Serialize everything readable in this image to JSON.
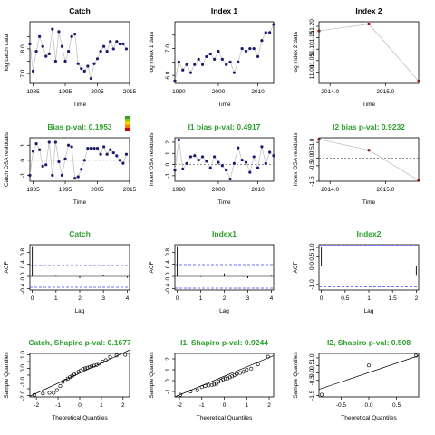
{
  "colors": {
    "title": "#000000",
    "green_title": "#2ca02c",
    "point": "#1a1a6e",
    "point_red": "#8b1a1a",
    "line": "#bbbbbb",
    "ref_line": "#4444ff",
    "legend": [
      "#2ca02c",
      "#7fd000",
      "#ffd000",
      "#ff8000",
      "#cc0000"
    ]
  },
  "chart_data": [
    {
      "type": "line",
      "title": "Catch",
      "xlabel": "Time",
      "ylabel": "log catch data",
      "xlim": [
        1984,
        2015
      ],
      "ylim": [
        6.6,
        9.1
      ],
      "xticks": [
        1985,
        1995,
        2005,
        2015
      ],
      "yticks": [
        7.0,
        7.5,
        8.0,
        8.5
      ],
      "ytick_labels": [
        "7.0",
        "",
        "8.0",
        ""
      ],
      "x": [
        1984,
        1985,
        1986,
        1987,
        1988,
        1989,
        1990,
        1991,
        1992,
        1993,
        1994,
        1995,
        1996,
        1997,
        1998,
        1999,
        2000,
        2001,
        2002,
        2003,
        2004,
        2005,
        2006,
        2007,
        2008,
        2009,
        2010,
        2011,
        2012,
        2013,
        2014
      ],
      "y": [
        8.2,
        7.1,
        7.9,
        8.5,
        8.1,
        7.7,
        7.8,
        8.8,
        7.5,
        8.7,
        8.1,
        7.5,
        7.9,
        8.5,
        8.6,
        7.4,
        7.2,
        7.1,
        7.3,
        6.8,
        7.4,
        7.6,
        7.9,
        8.1,
        7.9,
        8.3,
        8.0,
        8.3,
        8.2,
        8.2,
        8.0
      ]
    },
    {
      "type": "line",
      "title": "Index 1",
      "xlabel": "Time",
      "ylabel": "log index 1 data",
      "xlim": [
        1989,
        2014
      ],
      "ylim": [
        5.7,
        8.0
      ],
      "xticks": [
        1990,
        2000,
        2010
      ],
      "yticks": [
        6.0,
        6.5,
        7.0,
        7.5
      ],
      "ytick_labels": [
        "6.0",
        "",
        "7.0",
        ""
      ],
      "x": [
        1989,
        1990,
        1991,
        1992,
        1993,
        1994,
        1995,
        1996,
        1997,
        1998,
        1999,
        2000,
        2001,
        2002,
        2003,
        2004,
        2005,
        2006,
        2007,
        2008,
        2009,
        2010,
        2011,
        2012,
        2013,
        2014
      ],
      "y": [
        5.8,
        6.5,
        6.2,
        6.4,
        6.1,
        6.4,
        6.6,
        6.4,
        6.7,
        6.8,
        6.6,
        6.9,
        6.6,
        6.4,
        6.5,
        6.1,
        6.5,
        7.0,
        6.9,
        7.0,
        7.0,
        6.7,
        7.3,
        7.6,
        7.6,
        7.9
      ]
    },
    {
      "type": "line",
      "title": "Index 2",
      "xlabel": "Time",
      "ylabel": "log index 2 data",
      "xlim": [
        2013.8,
        2015.6
      ],
      "ylim": [
        10.95,
        11.22
      ],
      "xticks": [
        2014.0,
        2015.0
      ],
      "xtick_labels": [
        "2014.0",
        "2015.0"
      ],
      "yticks": [
        11.0,
        11.05,
        11.1,
        11.15,
        11.2
      ],
      "ytick_labels": [
        "11.00",
        "11.05",
        "11.10",
        "11.15",
        "11.20"
      ],
      "x": [
        2013.8,
        2014.7,
        2015.6
      ],
      "y": [
        11.18,
        11.21,
        10.96
      ],
      "point_color": "point_red"
    },
    {
      "type": "line",
      "title": "Bias p-val: 0.1953",
      "xlabel": "Time",
      "ylabel": "Catch OSA residuals",
      "xlim": [
        1984,
        2015
      ],
      "ylim": [
        -1.4,
        1.5
      ],
      "xticks": [
        1985,
        1995,
        2005,
        2015
      ],
      "yticks": [
        -1,
        0,
        1
      ],
      "ytick_labels": [
        "-1",
        "0",
        "1"
      ],
      "zero_line": true,
      "legend": true,
      "x": [
        1984,
        1985,
        1986,
        1987,
        1988,
        1989,
        1990,
        1991,
        1992,
        1993,
        1994,
        1995,
        1996,
        1997,
        1998,
        1999,
        2000,
        2001,
        2002,
        2003,
        2004,
        2005,
        2006,
        2007,
        2008,
        2009,
        2010,
        2011,
        2012,
        2013,
        2014
      ],
      "y": [
        -1.0,
        0.6,
        1.1,
        0.7,
        -0.4,
        -0.3,
        1.2,
        -1.0,
        1.2,
        -0.1,
        -1.0,
        0.1,
        1.0,
        0.9,
        -1.2,
        -1.1,
        -0.6,
        0.0,
        0.8,
        0.8,
        0.8,
        0.8,
        0.4,
        0.9,
        0.4,
        0.7,
        0.5,
        0.3,
        0.0,
        -0.2,
        0.4
      ]
    },
    {
      "type": "line",
      "title": "I1 bias p-val: 0.4917",
      "xlabel": "Time",
      "ylabel": "Index OSA residuals",
      "xlim": [
        1989,
        2014
      ],
      "ylim": [
        -1.5,
        2.4
      ],
      "xticks": [
        1990,
        2000,
        2010
      ],
      "yticks": [
        -1,
        0,
        1,
        2
      ],
      "ytick_labels": [
        "-1",
        "0",
        "1",
        "2"
      ],
      "zero_line": true,
      "x": [
        1989,
        1990,
        1991,
        1992,
        1993,
        1994,
        1995,
        1996,
        1997,
        1998,
        1999,
        2000,
        2001,
        2002,
        2003,
        2004,
        2005,
        2006,
        2007,
        2008,
        2009,
        2010,
        2011,
        2012,
        2013,
        2014
      ],
      "y": [
        -0.5,
        2.2,
        -0.4,
        0.1,
        0.7,
        0.8,
        0.4,
        0.7,
        0.3,
        -0.3,
        0.7,
        0.2,
        -0.1,
        -0.5,
        -1.3,
        0.1,
        1.5,
        0.4,
        0.2,
        -0.7,
        0.7,
        -0.3,
        1.6,
        0.1,
        1.1,
        0.8
      ]
    },
    {
      "type": "line",
      "title": "I2 bias p-val: 0.9232",
      "xlabel": "Time",
      "ylabel": "Index OSA residuals",
      "xlim": [
        2013.8,
        2015.6
      ],
      "ylim": [
        -1.5,
        1.3
      ],
      "xticks": [
        2014.0,
        2015.0
      ],
      "xtick_labels": [
        "2014.0",
        "2015.0"
      ],
      "yticks": [
        -1.5,
        -0.5,
        0.0,
        0.5,
        1.0
      ],
      "ytick_labels": [
        "-1.5",
        "-0.5",
        "0.0",
        "0.5",
        "1.0"
      ],
      "zero_line": true,
      "x": [
        2013.8,
        2014.7,
        2015.6
      ],
      "y": [
        1.2,
        0.5,
        -1.45
      ],
      "point_color": "point_red"
    },
    {
      "type": "bar",
      "title": "Catch",
      "xlabel": "Lag",
      "ylabel": "ACF",
      "xlim": [
        -0.1,
        4.1
      ],
      "ylim": [
        -0.45,
        1.05
      ],
      "xticks": [
        0,
        1,
        2,
        3,
        4
      ],
      "yticks": [
        -0.4,
        0.0,
        0.4,
        0.8
      ],
      "ytick_labels": [
        "-0.4",
        "0.0",
        "0.4",
        "0.8"
      ],
      "ci": 0.36,
      "x": [
        0,
        1,
        2,
        3,
        4
      ],
      "values": [
        1.0,
        0.02,
        -0.06,
        0.03,
        -0.05
      ]
    },
    {
      "type": "bar",
      "title": "Index1",
      "xlabel": "Lag",
      "ylabel": "ACF",
      "xlim": [
        -0.1,
        4.1
      ],
      "ylim": [
        -0.45,
        1.05
      ],
      "xticks": [
        0,
        1,
        2,
        3,
        4
      ],
      "yticks": [
        -0.4,
        0.0,
        0.4,
        0.8
      ],
      "ytick_labels": [
        "-0.4",
        "0.0",
        "0.4",
        "0.8"
      ],
      "ci": 0.39,
      "x": [
        0,
        1,
        2,
        3,
        4
      ],
      "values": [
        1.0,
        -0.02,
        0.1,
        -0.06,
        0.02
      ]
    },
    {
      "type": "bar",
      "title": "Index2",
      "xlabel": "Lag",
      "ylabel": "ACF",
      "xlim": [
        -0.05,
        2.05
      ],
      "ylim": [
        -1.3,
        1.15
      ],
      "xticks": [
        0.0,
        0.5,
        1.0,
        1.5,
        2.0
      ],
      "yticks": [
        -1.0,
        0.0,
        0.5,
        1.0
      ],
      "ytick_labels": [
        "-1.0",
        "0.0",
        "0.5",
        "1.0"
      ],
      "ci": 1.13,
      "x": [
        0,
        1,
        2
      ],
      "values": [
        1.0,
        0.02,
        -0.53
      ]
    },
    {
      "type": "scatter",
      "title": "Catch, Shapiro p-val: 0.1677",
      "xlabel": "Theoretical Quantiles",
      "ylabel": "Sample Quantiles",
      "xlim": [
        -2.3,
        2.3
      ],
      "ylim": [
        -2.1,
        1.1
      ],
      "xticks": [
        -2,
        -1,
        0,
        1,
        2
      ],
      "yticks": [
        -2.0,
        -1.5,
        -1.0,
        -0.5,
        0.0,
        0.5,
        1.0
      ],
      "ytick_labels": [
        "-2.0",
        "",
        "-1.0",
        "",
        "0.0",
        "",
        "1.0"
      ],
      "x": [
        -2.1,
        -1.7,
        -1.4,
        -1.2,
        -1.05,
        -0.9,
        -0.78,
        -0.66,
        -0.55,
        -0.45,
        -0.35,
        -0.25,
        -0.15,
        -0.05,
        0.05,
        0.15,
        0.25,
        0.35,
        0.45,
        0.55,
        0.66,
        0.78,
        0.9,
        1.05,
        1.2,
        1.4,
        1.7,
        2.1
      ],
      "y": [
        -1.95,
        -1.85,
        -1.8,
        -1.8,
        -1.6,
        -1.3,
        -1.0,
        -0.9,
        -0.75,
        -0.65,
        -0.55,
        -0.45,
        -0.35,
        -0.25,
        -0.15,
        -0.05,
        0.0,
        0.05,
        0.1,
        0.15,
        0.2,
        0.25,
        0.35,
        0.5,
        0.6,
        0.85,
        0.95,
        1.0
      ],
      "line": {
        "x": [
          -2.3,
          2.3
        ],
        "y": [
          -2.05,
          1.35
        ]
      }
    },
    {
      "type": "scatter",
      "title": "I1, Shapiro p-val: 0.9244",
      "xlabel": "Theoretical Quantiles",
      "ylabel": "Sample Quantiles",
      "xlim": [
        -2.2,
        2.2
      ],
      "ylim": [
        -1.5,
        2.5
      ],
      "xticks": [
        -2,
        -1,
        0,
        1,
        2
      ],
      "yticks": [
        -1,
        0,
        1,
        2
      ],
      "ytick_labels": [
        "-1",
        "0",
        "1",
        "2"
      ],
      "x": [
        -1.95,
        -1.5,
        -1.2,
        -1.0,
        -0.85,
        -0.7,
        -0.55,
        -0.45,
        -0.35,
        -0.25,
        -0.15,
        -0.05,
        0.05,
        0.15,
        0.25,
        0.35,
        0.45,
        0.55,
        0.7,
        0.85,
        1.0,
        1.2,
        1.5,
        1.95
      ],
      "y": [
        -1.3,
        -1.0,
        -0.9,
        -0.6,
        -0.5,
        -0.45,
        -0.4,
        -0.35,
        -0.3,
        -0.1,
        0.0,
        0.1,
        0.2,
        0.2,
        0.3,
        0.4,
        0.5,
        0.6,
        0.7,
        0.8,
        1.0,
        1.1,
        1.5,
        2.2
      ],
      "line": {
        "x": [
          -2.2,
          2.2
        ],
        "y": [
          -1.5,
          2.3
        ]
      }
    },
    {
      "type": "scatter",
      "title": "I2, Shapiro p-val: 0.508",
      "xlabel": "Theoretical Quantiles",
      "ylabel": "Sample Quantiles",
      "xlim": [
        -0.9,
        0.9
      ],
      "ylim": [
        -1.6,
        1.3
      ],
      "xticks": [
        -0.5,
        0.0,
        0.5
      ],
      "xtick_labels": [
        "-0.5",
        "0.0",
        "0.5"
      ],
      "yticks": [
        -1.5,
        -0.5,
        0.0,
        0.5,
        1.0
      ],
      "ytick_labels": [
        "-1.5",
        "-0.5",
        "0.0",
        "0.5",
        "1.0"
      ],
      "x": [
        -0.85,
        0.0,
        0.85
      ],
      "y": [
        -1.45,
        0.5,
        1.15
      ],
      "line": {
        "x": [
          -0.9,
          0.9
        ],
        "y": [
          -1.1,
          1.15
        ]
      }
    }
  ]
}
